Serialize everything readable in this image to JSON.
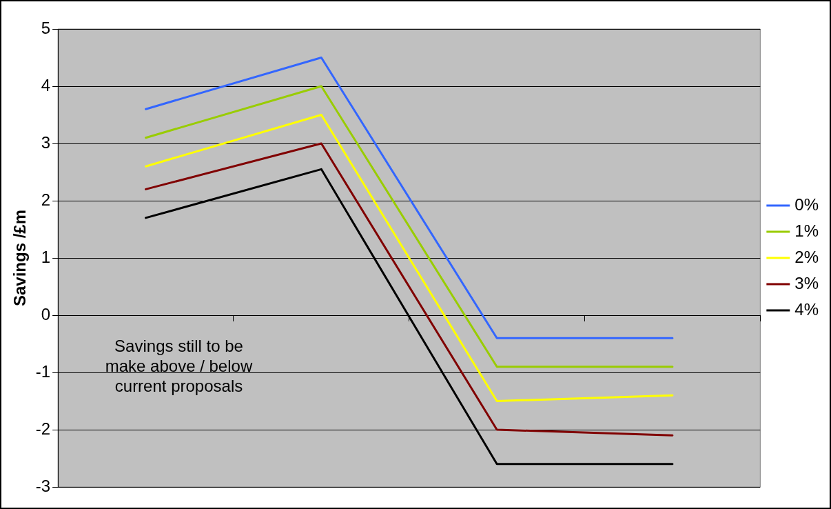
{
  "chart_data": {
    "type": "line",
    "ylabel": "Savings /£m",
    "categories": [
      null,
      null,
      null,
      null
    ],
    "series": [
      {
        "name": "0%",
        "color": "#3366ff",
        "values": [
          3.6,
          4.5,
          -0.4,
          -0.4
        ]
      },
      {
        "name": "1%",
        "color": "#99cc00",
        "values": [
          3.1,
          4.0,
          -0.9,
          -0.9
        ]
      },
      {
        "name": "2%",
        "color": "#ffff00",
        "values": [
          2.6,
          3.5,
          -1.5,
          -1.4
        ]
      },
      {
        "name": "3%",
        "color": "#800000",
        "values": [
          2.2,
          3.0,
          -2.0,
          -2.1
        ]
      },
      {
        "name": "4%",
        "color": "#000000",
        "values": [
          1.7,
          2.55,
          -2.6,
          -2.6
        ]
      }
    ],
    "ylim": [
      -3,
      5
    ],
    "yticks": [
      -3,
      -2,
      -1,
      0,
      1,
      2,
      3,
      4,
      5
    ],
    "grid": "y",
    "legend": "right",
    "marker": "none",
    "line_style": "solid",
    "annotations": [
      "Savings still to be make above / below current proposals"
    ]
  }
}
